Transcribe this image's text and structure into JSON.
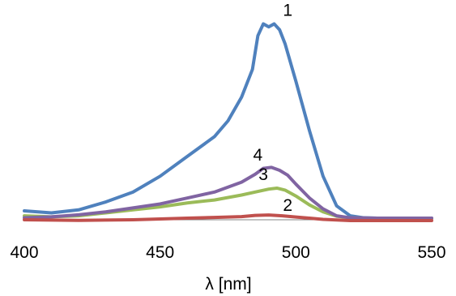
{
  "chart_data": {
    "type": "line",
    "title": "",
    "xlabel": "λ [nm]",
    "ylabel": "",
    "xlim": [
      400,
      550
    ],
    "ylim": [
      0,
      1.0
    ],
    "xticks": [
      "400",
      "450",
      "500",
      "550"
    ],
    "y_axis_shown": false,
    "grid": false,
    "legend": "none",
    "series": [
      {
        "name": "1",
        "color": "#4f81bd",
        "x": [
          400,
          410,
          420,
          430,
          440,
          450,
          460,
          470,
          475,
          480,
          484,
          486,
          488,
          490,
          492,
          494,
          496,
          500,
          505,
          510,
          515,
          520,
          525,
          530,
          540,
          550
        ],
        "y": [
          0.045,
          0.035,
          0.05,
          0.09,
          0.14,
          0.22,
          0.32,
          0.42,
          0.5,
          0.62,
          0.76,
          0.93,
          0.99,
          0.975,
          0.99,
          0.96,
          0.89,
          0.7,
          0.45,
          0.22,
          0.07,
          0.02,
          0.01,
          0.008,
          0.008,
          0.008
        ]
      },
      {
        "name": "2",
        "color": "#c0504d",
        "x": [
          400,
          420,
          440,
          460,
          470,
          480,
          485,
          490,
          495,
          500,
          505,
          510,
          520,
          530,
          550
        ],
        "y": [
          0.0,
          -0.003,
          0.0,
          0.008,
          0.012,
          0.016,
          0.022,
          0.024,
          0.02,
          0.014,
          0.008,
          0.002,
          -0.004,
          -0.004,
          -0.004
        ]
      },
      {
        "name": "3",
        "color": "#9bbb59",
        "x": [
          400,
          410,
          420,
          430,
          440,
          450,
          460,
          470,
          480,
          485,
          490,
          493,
          496,
          500,
          505,
          510,
          515,
          520,
          530,
          540,
          550
        ],
        "y": [
          0.02,
          0.015,
          0.02,
          0.035,
          0.05,
          0.065,
          0.085,
          0.1,
          0.125,
          0.14,
          0.155,
          0.16,
          0.15,
          0.12,
          0.075,
          0.04,
          0.018,
          0.01,
          0.006,
          0.006,
          0.006
        ]
      },
      {
        "name": "4",
        "color": "#8064a2",
        "x": [
          400,
          410,
          420,
          430,
          440,
          450,
          460,
          470,
          480,
          485,
          488,
          491,
          494,
          497,
          500,
          505,
          510,
          515,
          520,
          530,
          550
        ],
        "y": [
          0.01,
          0.015,
          0.025,
          0.04,
          0.06,
          0.08,
          0.11,
          0.14,
          0.19,
          0.23,
          0.26,
          0.265,
          0.25,
          0.225,
          0.18,
          0.11,
          0.055,
          0.02,
          0.01,
          0.008,
          0.008
        ]
      }
    ],
    "annotations": [
      {
        "text": "1",
        "x": 497,
        "y": 1.03
      },
      {
        "text": "4",
        "x": 486,
        "y": 0.3
      },
      {
        "text": "3",
        "x": 488,
        "y": 0.2
      },
      {
        "text": "2",
        "x": 497,
        "y": 0.045
      }
    ]
  }
}
